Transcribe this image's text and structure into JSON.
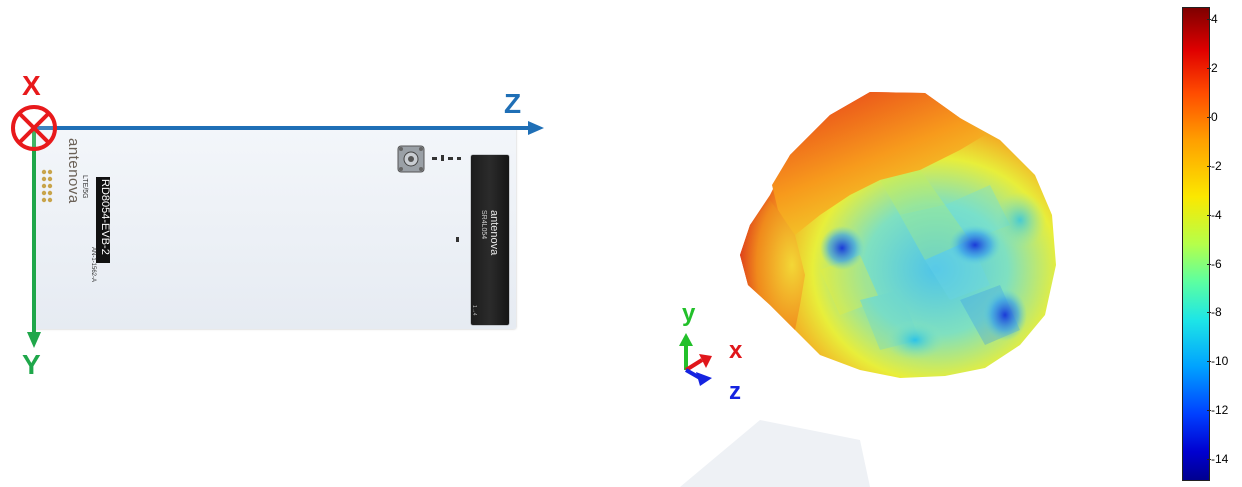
{
  "left_panel": {
    "axis_x_label": "X",
    "axis_z_label": "Z",
    "axis_y_label": "Y",
    "board": {
      "brand_logo_text": "antenova",
      "brand_sub": "LTE/5G",
      "board_label": "RD8054-EVB-2",
      "board_sub": "AN-1-1562-A",
      "chip_brand": "antenova",
      "chip_model": "SR4L054"
    },
    "colors": {
      "x_axis": "#e8191b",
      "z_axis": "#1f6fb6",
      "y_axis": "#1fa74a"
    }
  },
  "right_panel": {
    "triad": {
      "y_label": "y",
      "x_label": "x",
      "z_label": "z"
    },
    "colors": {
      "triad_y": "#22c02a",
      "triad_x": "#e0161b",
      "triad_z": "#1523e0"
    }
  },
  "colorbar": {
    "ticks": [
      {
        "value": 4,
        "label": "4"
      },
      {
        "value": 2,
        "label": "2"
      },
      {
        "value": 0,
        "label": "0"
      },
      {
        "value": -2,
        "label": "-2"
      },
      {
        "value": -4,
        "label": "-4"
      },
      {
        "value": -6,
        "label": "-6"
      },
      {
        "value": -8,
        "label": "-8"
      },
      {
        "value": -10,
        "label": "-10"
      },
      {
        "value": -12,
        "label": "-12"
      },
      {
        "value": -14,
        "label": "-14"
      }
    ],
    "range": [
      -14.9,
      4.5
    ],
    "colormap": "jet"
  }
}
